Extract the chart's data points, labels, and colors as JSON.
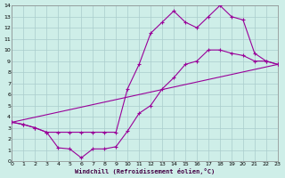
{
  "xlabel": "Windchill (Refroidissement éolien,°C)",
  "bg_color": "#ceeee8",
  "line_color": "#990099",
  "grid_color": "#aacccc",
  "xlim": [
    0,
    23
  ],
  "ylim": [
    0,
    14
  ],
  "xticks": [
    0,
    1,
    2,
    3,
    4,
    5,
    6,
    7,
    8,
    9,
    10,
    11,
    12,
    13,
    14,
    15,
    16,
    17,
    18,
    19,
    20,
    21,
    22,
    23
  ],
  "yticks": [
    0,
    1,
    2,
    3,
    4,
    5,
    6,
    7,
    8,
    9,
    10,
    11,
    12,
    13,
    14
  ],
  "line1_x": [
    0,
    1,
    2,
    3,
    4,
    5,
    6,
    7,
    8,
    9,
    10,
    11,
    12,
    13,
    14,
    15,
    16,
    17,
    18,
    19,
    20,
    21,
    22,
    23
  ],
  "line1_y": [
    3.5,
    3.3,
    3.0,
    2.6,
    1.2,
    1.1,
    0.3,
    1.1,
    1.1,
    1.3,
    2.7,
    4.3,
    5.0,
    6.5,
    7.5,
    8.7,
    9.0,
    10.0,
    10.0,
    9.7,
    9.5,
    9.0,
    9.0,
    8.7
  ],
  "line2_x": [
    0,
    1,
    2,
    3,
    4,
    5,
    6,
    7,
    8,
    9,
    10,
    11,
    12,
    13,
    14,
    15,
    16,
    17,
    18,
    19,
    20,
    21,
    22,
    23
  ],
  "line2_y": [
    3.5,
    3.3,
    3.0,
    2.6,
    2.6,
    2.6,
    2.6,
    2.6,
    2.6,
    2.6,
    6.5,
    8.7,
    11.5,
    12.5,
    13.5,
    12.5,
    12.0,
    13.0,
    14.0,
    13.0,
    12.7,
    9.7,
    9.0,
    8.7
  ],
  "line3_x": [
    0,
    23
  ],
  "line3_y": [
    3.5,
    8.7
  ]
}
